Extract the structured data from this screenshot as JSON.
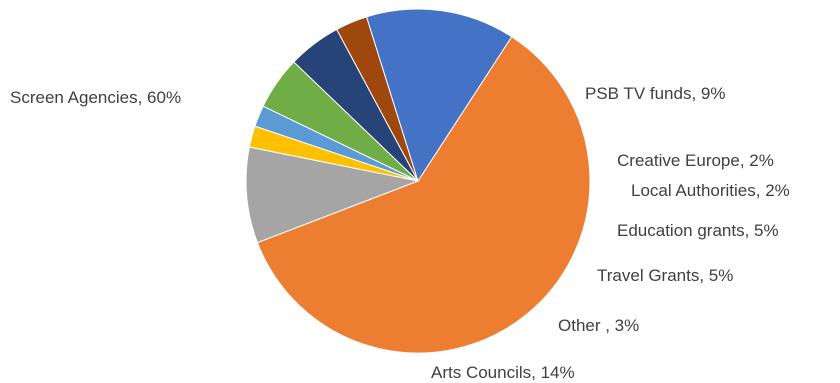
{
  "chart_data": {
    "type": "pie",
    "slices": [
      {
        "label": "Screen Agencies, 60%",
        "name": "Screen Agencies",
        "value": 60,
        "color": "#ED7D31"
      },
      {
        "label": "PSB TV funds, 9%",
        "name": "PSB TV funds",
        "value": 9,
        "color": "#A5A5A5"
      },
      {
        "label": "Creative Europe, 2%",
        "name": "Creative Europe",
        "value": 2,
        "color": "#FFC000"
      },
      {
        "label": "Local Authorities, 2%",
        "name": "Local Authorities",
        "value": 2,
        "color": "#5B9BD5"
      },
      {
        "label": "Education grants, 5%",
        "name": "Education grants",
        "value": 5,
        "color": "#70AD47"
      },
      {
        "label": "Travel Grants, 5%",
        "name": "Travel Grants",
        "value": 5,
        "color": "#264478"
      },
      {
        "label": "Other , 3%",
        "name": "Other",
        "value": 3,
        "color": "#9E480E"
      },
      {
        "label": "Arts Councils, 14%",
        "name": "Arts Councils",
        "value": 14,
        "color": "#4472C4"
      }
    ],
    "legend": "none"
  }
}
